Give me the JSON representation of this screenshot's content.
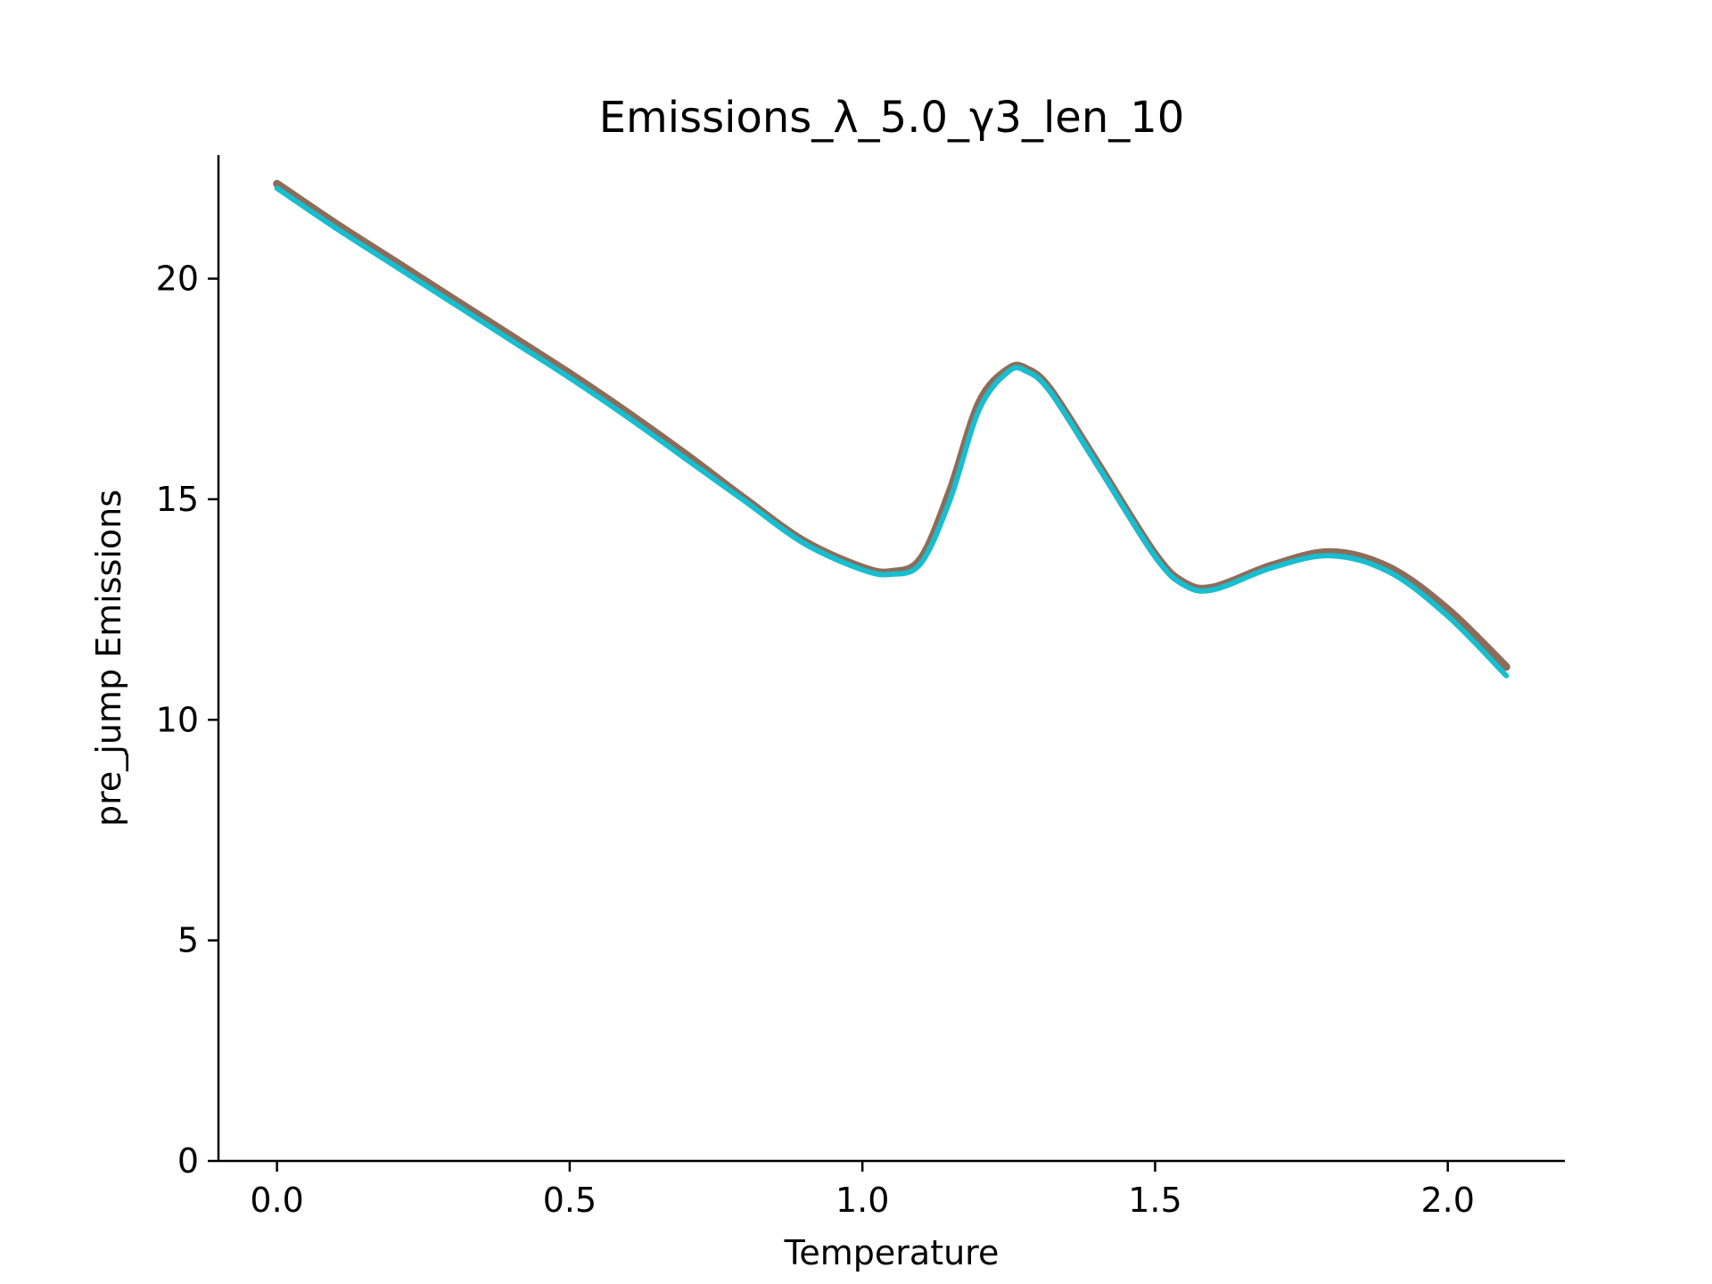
{
  "chart_data": {
    "type": "line",
    "title": "Emissions_λ_5.0_γ3_len_10",
    "xlabel": "Temperature",
    "ylabel": "pre_jump Emissions",
    "xlim": [
      -0.1,
      2.2
    ],
    "ylim": [
      0,
      22.8
    ],
    "xticks": [
      0.0,
      0.5,
      1.0,
      1.5,
      2.0
    ],
    "xtick_labels": [
      "0.0",
      "0.5",
      "1.0",
      "1.5",
      "2.0"
    ],
    "yticks": [
      0,
      5,
      10,
      15,
      20
    ],
    "ytick_labels": [
      "0",
      "5",
      "10",
      "15",
      "20"
    ],
    "grid": false,
    "spines": [
      "left",
      "bottom"
    ],
    "x": [
      0.0,
      0.1,
      0.2,
      0.3,
      0.4,
      0.5,
      0.6,
      0.7,
      0.8,
      0.9,
      1.0,
      1.05,
      1.1,
      1.15,
      1.2,
      1.25,
      1.28,
      1.32,
      1.4,
      1.5,
      1.55,
      1.6,
      1.7,
      1.8,
      1.9,
      2.0,
      2.1
    ],
    "series": [
      {
        "color": "#8c6d5a",
        "values": [
          22.15,
          21.25,
          20.4,
          19.55,
          18.7,
          17.85,
          16.95,
          16.0,
          15.0,
          14.05,
          13.45,
          13.35,
          13.65,
          15.2,
          17.2,
          17.95,
          17.95,
          17.5,
          15.85,
          13.75,
          13.1,
          13.0,
          13.5,
          13.8,
          13.45,
          12.5,
          11.2
        ]
      },
      {
        "color": "#17becf",
        "values": [
          22.05,
          21.15,
          20.3,
          19.45,
          18.6,
          17.75,
          16.85,
          15.9,
          14.95,
          14.0,
          13.4,
          13.3,
          13.55,
          15.0,
          17.05,
          17.9,
          17.9,
          17.45,
          15.8,
          13.7,
          13.05,
          12.95,
          13.45,
          13.72,
          13.35,
          12.35,
          11.0
        ]
      }
    ]
  }
}
